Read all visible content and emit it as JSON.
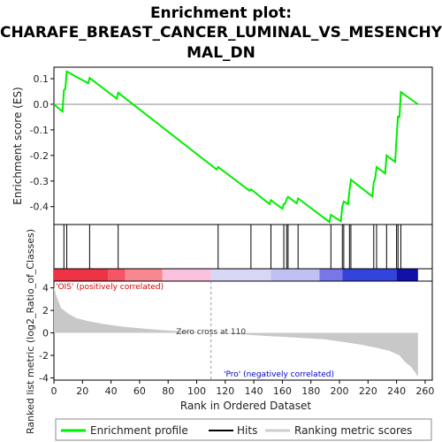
{
  "chart_data": {
    "type": "line",
    "title_lines": [
      "Enrichment plot:",
      "CHARAFE_BREAST_CANCER_LUMINAL_VS_MESENCHY",
      "MAL_DN"
    ],
    "xlabel": "Rank in Ordered Dataset",
    "es_ylabel": "Enrichment score (ES)",
    "metric_ylabel": "Ranked list metric (log2_Ratio_of_Classes)",
    "xlim": [
      0,
      265
    ],
    "x_ticks": [
      0,
      20,
      40,
      60,
      80,
      100,
      120,
      140,
      160,
      180,
      200,
      220,
      240,
      260
    ],
    "es_ylim": [
      -0.47,
      0.145
    ],
    "es_ticks": [
      0.1,
      0.0,
      -0.1,
      -0.2,
      -0.3,
      -0.4
    ],
    "es_tick_labels": [
      "0.1",
      "0.0",
      "-0.1",
      "-0.2",
      "-0.3",
      "-0.4"
    ],
    "metric_ylim": [
      -4.2,
      4.6
    ],
    "metric_ticks": [
      4,
      2,
      0,
      -2,
      -4
    ],
    "metric_tick_labels": [
      "4",
      "2",
      "0",
      "-2",
      "-4"
    ],
    "hits": [
      7,
      9,
      25,
      45,
      115,
      138,
      152,
      161,
      163,
      164,
      171,
      194,
      202,
      203,
      207,
      208,
      224,
      226,
      233,
      240,
      241,
      243
    ],
    "series": [
      {
        "name": "Enrichment profile",
        "color": "#00ee00",
        "x": [
          0,
          6,
          7,
          8,
          9,
          24,
          25,
          44,
          45,
          114,
          115,
          137,
          138,
          151,
          152,
          160,
          161,
          162,
          163,
          164,
          170,
          171,
          193,
          194,
          201,
          202,
          203,
          206,
          207,
          208,
          223,
          224,
          225,
          226,
          232,
          233,
          239,
          240,
          241,
          242,
          243,
          255
        ],
        "y": [
          0.0,
          -0.028,
          0.055,
          0.06,
          0.128,
          0.082,
          0.103,
          0.022,
          0.045,
          -0.255,
          -0.245,
          -0.338,
          -0.332,
          -0.39,
          -0.375,
          -0.408,
          -0.39,
          -0.388,
          -0.37,
          -0.362,
          -0.387,
          -0.368,
          -0.46,
          -0.432,
          -0.457,
          -0.4,
          -0.38,
          -0.39,
          -0.34,
          -0.295,
          -0.36,
          -0.305,
          -0.29,
          -0.245,
          -0.27,
          -0.2,
          -0.225,
          -0.13,
          -0.048,
          -0.05,
          0.048,
          0.0
        ]
      }
    ],
    "metric_profile": {
      "x": [
        0,
        2,
        5,
        10,
        16,
        24,
        35,
        50,
        70,
        90,
        110,
        130,
        150,
        170,
        190,
        205,
        215,
        225,
        235,
        242,
        246,
        250,
        253,
        255
      ],
      "y": [
        4.1,
        3.2,
        2.2,
        1.7,
        1.3,
        1.05,
        0.78,
        0.52,
        0.3,
        0.13,
        0.0,
        -0.12,
        -0.28,
        -0.42,
        -0.58,
        -0.85,
        -1.05,
        -1.3,
        -1.6,
        -2.0,
        -2.6,
        -3.0,
        -3.5,
        -3.9
      ]
    },
    "ois_label": "'OIS' (positively correlated)",
    "ois_color": "#dd0000",
    "pro_label": "'Pro' (negatively correlated)",
    "pro_color": "#0000cc",
    "zero_cross_label": "Zero cross at 110",
    "zero_cross_x": 110,
    "legend": [
      {
        "label": "Enrichment profile",
        "color": "#00ee00"
      },
      {
        "label": "Hits",
        "color": "#000000"
      },
      {
        "label": "Ranking metric scores",
        "color": "#cccccc"
      }
    ],
    "heat_segments": [
      {
        "x0": 0,
        "x1": 38,
        "color": "#ee3344"
      },
      {
        "x0": 38,
        "x1": 50,
        "color": "#f55566"
      },
      {
        "x0": 50,
        "x1": 76,
        "color": "#f88890"
      },
      {
        "x0": 76,
        "x1": 110,
        "color": "#fbc0dd"
      },
      {
        "x0": 110,
        "x1": 152,
        "color": "#d8d8f6"
      },
      {
        "x0": 152,
        "x1": 186,
        "color": "#c0c0f2"
      },
      {
        "x0": 186,
        "x1": 202,
        "color": "#7777e8"
      },
      {
        "x0": 202,
        "x1": 240,
        "color": "#3344dd"
      },
      {
        "x0": 240,
        "x1": 255,
        "color": "#1111aa"
      }
    ]
  }
}
